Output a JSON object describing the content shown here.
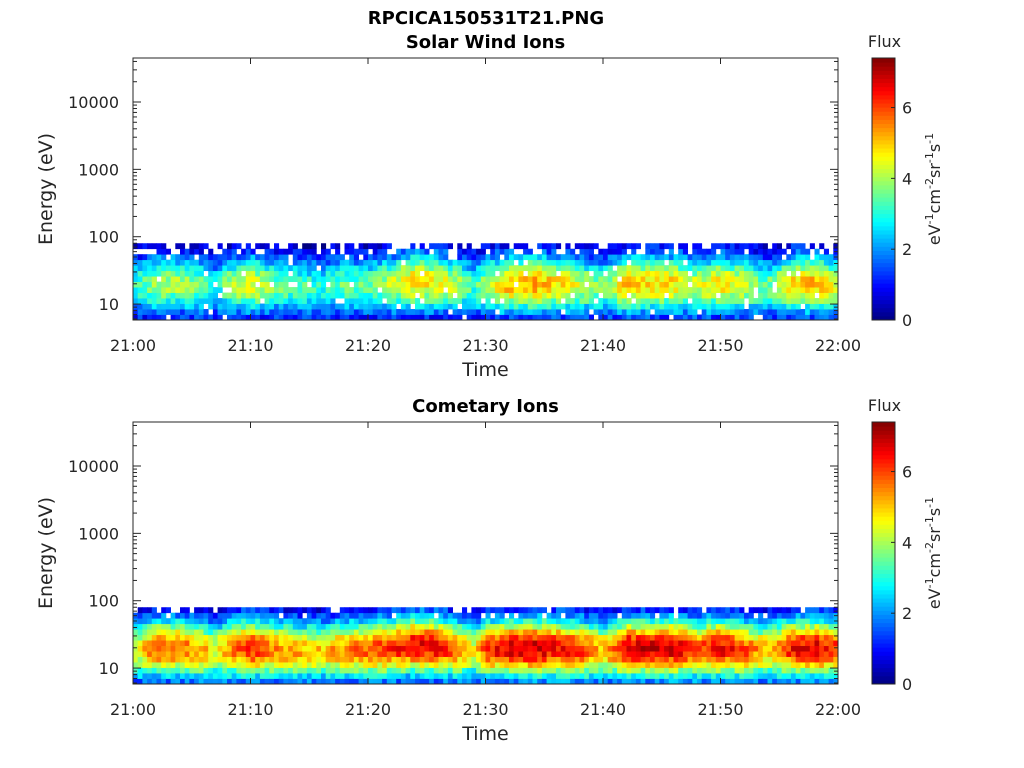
{
  "figure": {
    "title": "RPCICA150531T21.PNG"
  },
  "chart_data": [
    {
      "type": "heatmap",
      "title": "Solar Wind Ions",
      "xlabel": "Time",
      "ylabel": "Energy (eV)",
      "x_tick_labels": [
        "21:00",
        "21:10",
        "21:20",
        "21:30",
        "21:40",
        "21:50",
        "22:00"
      ],
      "x_range": [
        "21:00",
        "22:00"
      ],
      "y_scale": "log",
      "y_tick_labels": [
        "10",
        "100",
        "1000",
        "10000"
      ],
      "y_range": [
        5.8,
        45000
      ],
      "data_energy_range": [
        5.8,
        80
      ],
      "colorbar": {
        "label": "Flux",
        "units": "eV-1cm-2sr-1s-1",
        "range": [
          0,
          7.4
        ],
        "tick_labels": [
          "0",
          "2",
          "4",
          "6"
        ],
        "colormap": "jet"
      },
      "time_profile": {
        "times": [
          "21:00",
          "21:02",
          "21:04",
          "21:06",
          "21:07",
          "21:08",
          "21:10",
          "21:12",
          "21:14",
          "21:16",
          "21:18",
          "21:20",
          "21:22",
          "21:24",
          "21:26",
          "21:28",
          "21:29",
          "21:30",
          "21:32",
          "21:34",
          "21:36",
          "21:38",
          "21:40",
          "21:42",
          "21:44",
          "21:46",
          "21:48",
          "21:50",
          "21:52",
          "21:54",
          "21:56",
          "21:58",
          "22:00"
        ],
        "peak_flux": [
          3.0,
          4.0,
          4.0,
          3.5,
          2.6,
          3.8,
          4.6,
          3.6,
          3.4,
          3.0,
          3.5,
          3.4,
          4.2,
          5.0,
          4.6,
          3.8,
          3.2,
          4.0,
          5.2,
          5.3,
          4.8,
          4.3,
          3.6,
          5.1,
          4.9,
          4.8,
          4.2,
          4.8,
          4.3,
          3.5,
          4.9,
          5.2,
          4.4
        ],
        "peak_energy_eV": [
          18,
          20,
          20,
          18,
          18,
          19,
          20,
          19,
          18,
          18,
          19,
          19,
          20,
          22,
          21,
          19,
          18,
          19,
          20,
          20,
          20,
          19,
          18,
          20,
          20,
          20,
          19,
          20,
          19,
          18,
          20,
          20,
          19
        ]
      }
    },
    {
      "type": "heatmap",
      "title": "Cometary Ions",
      "xlabel": "Time",
      "ylabel": "Energy (eV)",
      "x_tick_labels": [
        "21:00",
        "21:10",
        "21:20",
        "21:30",
        "21:40",
        "21:50",
        "22:00"
      ],
      "x_range": [
        "21:00",
        "22:00"
      ],
      "y_scale": "log",
      "y_tick_labels": [
        "10",
        "100",
        "1000",
        "10000"
      ],
      "y_range": [
        5.8,
        45000
      ],
      "data_energy_range": [
        5.8,
        80
      ],
      "colorbar": {
        "label": "Flux",
        "units": "eV-1cm-2sr-1s-1",
        "range": [
          0,
          7.4
        ],
        "tick_labels": [
          "0",
          "2",
          "4",
          "6"
        ],
        "colormap": "jet"
      },
      "time_profile": {
        "times": [
          "21:00",
          "21:02",
          "21:04",
          "21:06",
          "21:07",
          "21:08",
          "21:10",
          "21:12",
          "21:14",
          "21:16",
          "21:18",
          "21:20",
          "21:22",
          "21:24",
          "21:26",
          "21:28",
          "21:29",
          "21:30",
          "21:32",
          "21:34",
          "21:36",
          "21:38",
          "21:40",
          "21:42",
          "21:44",
          "21:46",
          "21:48",
          "21:50",
          "21:52",
          "21:54",
          "21:56",
          "21:58",
          "22:00"
        ],
        "peak_flux": [
          4.2,
          5.9,
          5.8,
          5.2,
          4.5,
          5.4,
          6.4,
          5.6,
          5.2,
          5.0,
          5.5,
          5.9,
          6.2,
          6.6,
          6.5,
          5.5,
          4.5,
          6.0,
          6.8,
          6.9,
          6.5,
          6.3,
          5.0,
          6.8,
          6.7,
          6.8,
          6.0,
          6.6,
          6.0,
          5.0,
          6.4,
          6.7,
          6.2
        ],
        "peak_energy_eV": [
          18,
          20,
          20,
          18,
          18,
          19,
          20,
          19,
          18,
          18,
          19,
          19,
          20,
          22,
          21,
          19,
          18,
          19,
          20,
          20,
          20,
          19,
          18,
          20,
          20,
          20,
          19,
          20,
          19,
          18,
          20,
          20,
          19
        ]
      }
    }
  ]
}
